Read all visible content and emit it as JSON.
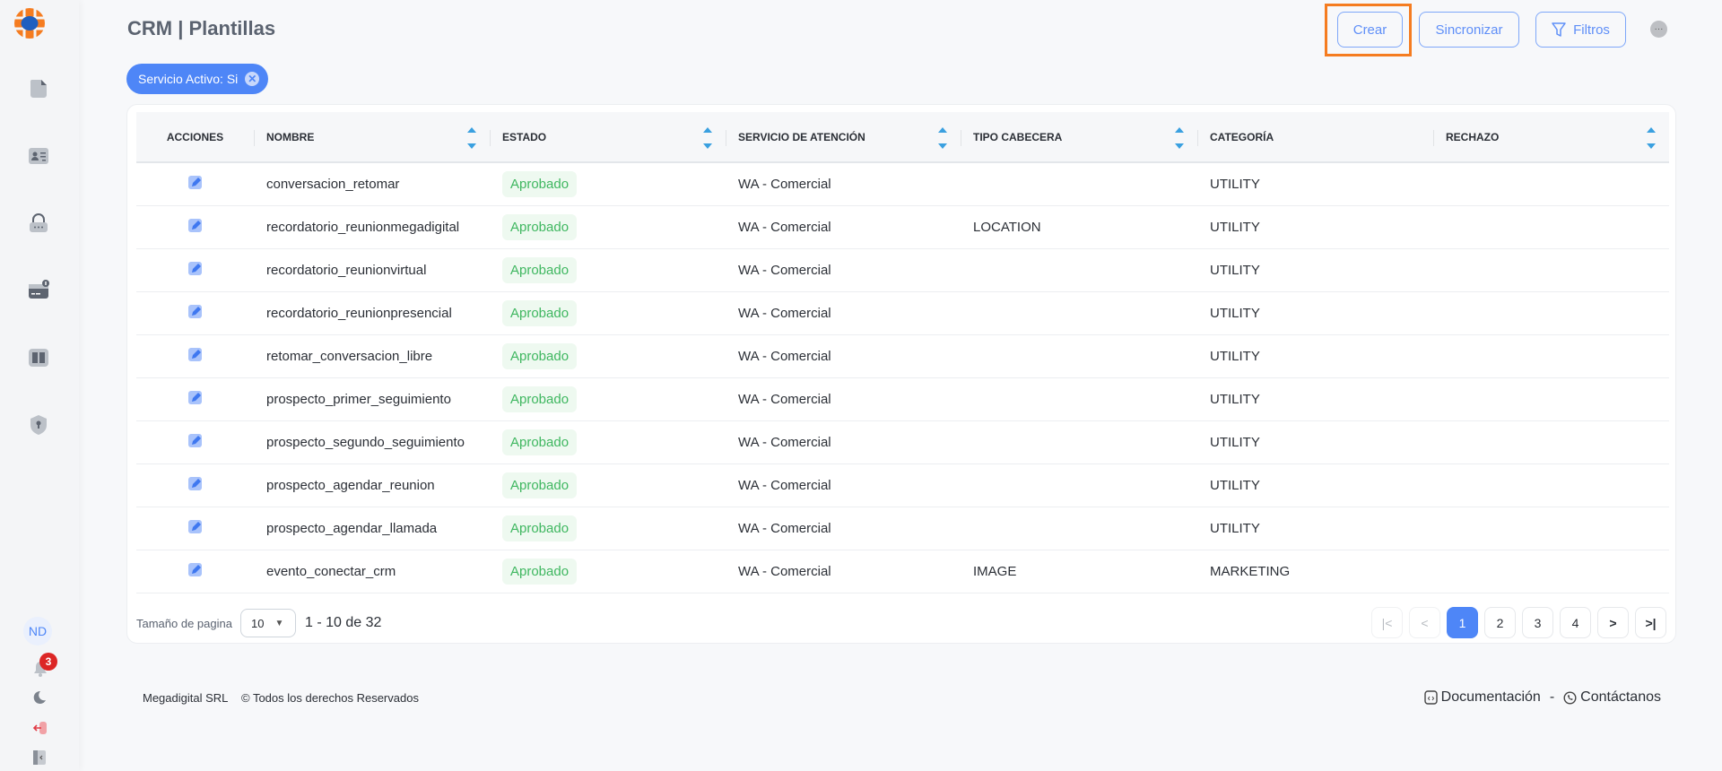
{
  "header": {
    "title": "CRM | Plantillas",
    "create_label": "Crear",
    "sync_label": "Sincronizar",
    "filters_label": "Filtros"
  },
  "filter_chip": {
    "label": "Servicio Activo: Si"
  },
  "sidebar": {
    "avatar_initials": "ND",
    "notification_count": "3",
    "icons": [
      "document-icon",
      "contact-card-icon",
      "lock-icon",
      "credit-card-icon",
      "book-icon",
      "shield-icon"
    ]
  },
  "table": {
    "columns": [
      "ACCIONES",
      "NOMBRE",
      "ESTADO",
      "SERVICIO DE ATENCIÓN",
      "TIPO CABECERA",
      "CATEGORÍA",
      "RECHAZO"
    ],
    "rows": [
      {
        "nombre": "conversacion_retomar",
        "estado": "Aprobado",
        "servicio": "WA - Comercial",
        "tipo": "",
        "categoria": "UTILITY",
        "rechazo": ""
      },
      {
        "nombre": "recordatorio_reunionmegadigital",
        "estado": "Aprobado",
        "servicio": "WA - Comercial",
        "tipo": "LOCATION",
        "categoria": "UTILITY",
        "rechazo": ""
      },
      {
        "nombre": "recordatorio_reunionvirtual",
        "estado": "Aprobado",
        "servicio": "WA - Comercial",
        "tipo": "",
        "categoria": "UTILITY",
        "rechazo": ""
      },
      {
        "nombre": "recordatorio_reunionpresencial",
        "estado": "Aprobado",
        "servicio": "WA - Comercial",
        "tipo": "",
        "categoria": "UTILITY",
        "rechazo": ""
      },
      {
        "nombre": "retomar_conversacion_libre",
        "estado": "Aprobado",
        "servicio": "WA - Comercial",
        "tipo": "",
        "categoria": "UTILITY",
        "rechazo": ""
      },
      {
        "nombre": "prospecto_primer_seguimiento",
        "estado": "Aprobado",
        "servicio": "WA - Comercial",
        "tipo": "",
        "categoria": "UTILITY",
        "rechazo": ""
      },
      {
        "nombre": "prospecto_segundo_seguimiento",
        "estado": "Aprobado",
        "servicio": "WA - Comercial",
        "tipo": "",
        "categoria": "UTILITY",
        "rechazo": ""
      },
      {
        "nombre": "prospecto_agendar_reunion",
        "estado": "Aprobado",
        "servicio": "WA - Comercial",
        "tipo": "",
        "categoria": "UTILITY",
        "rechazo": ""
      },
      {
        "nombre": "prospecto_agendar_llamada",
        "estado": "Aprobado",
        "servicio": "WA - Comercial",
        "tipo": "",
        "categoria": "UTILITY",
        "rechazo": ""
      },
      {
        "nombre": "evento_conectar_crm",
        "estado": "Aprobado",
        "servicio": "WA - Comercial",
        "tipo": "IMAGE",
        "categoria": "MARKETING",
        "rechazo": ""
      }
    ]
  },
  "pagination": {
    "page_size_label": "Tamaño de pagina",
    "page_size": "10",
    "range": "1 - 10 de 32",
    "pages": [
      "1",
      "2",
      "3",
      "4"
    ],
    "current": "1"
  },
  "footer": {
    "company": "Megadigital SRL",
    "rights": "© Todos los derechos Reservados",
    "docs": "Documentación",
    "separator": "-",
    "contact": "Contáctanos"
  },
  "colors": {
    "accent": "#4e86f7",
    "success": "#3fb760",
    "highlight": "#f57c20",
    "badge": "#dc2626"
  }
}
